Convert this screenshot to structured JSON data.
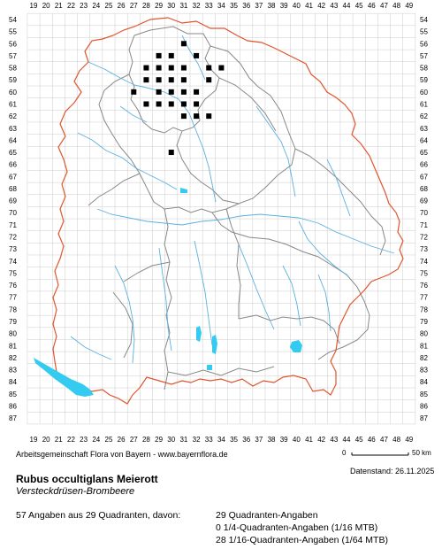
{
  "map": {
    "x_labels": [
      "19",
      "20",
      "21",
      "22",
      "23",
      "24",
      "25",
      "26",
      "27",
      "28",
      "29",
      "30",
      "31",
      "32",
      "33",
      "34",
      "35",
      "36",
      "37",
      "38",
      "39",
      "40",
      "41",
      "42",
      "43",
      "44",
      "45",
      "46",
      "47",
      "48",
      "49"
    ],
    "y_labels": [
      "54",
      "55",
      "56",
      "57",
      "58",
      "59",
      "60",
      "61",
      "62",
      "63",
      "64",
      "65",
      "66",
      "67",
      "68",
      "69",
      "70",
      "71",
      "72",
      "73",
      "74",
      "75",
      "76",
      "77",
      "78",
      "79",
      "80",
      "81",
      "82",
      "83",
      "84",
      "85",
      "86",
      "87"
    ],
    "occurrence_cells": [
      [
        31,
        56
      ],
      [
        29,
        57
      ],
      [
        30,
        57
      ],
      [
        32,
        57
      ],
      [
        28,
        58
      ],
      [
        29,
        58
      ],
      [
        30,
        58
      ],
      [
        31,
        58
      ],
      [
        33,
        58
      ],
      [
        34,
        58
      ],
      [
        28,
        59
      ],
      [
        29,
        59
      ],
      [
        30,
        59
      ],
      [
        31,
        59
      ],
      [
        33,
        59
      ],
      [
        29,
        60
      ],
      [
        30,
        60
      ],
      [
        31,
        60
      ],
      [
        32,
        60
      ],
      [
        28,
        61
      ],
      [
        29,
        61
      ],
      [
        30,
        61
      ],
      [
        31,
        61
      ],
      [
        32,
        61
      ],
      [
        31,
        62
      ],
      [
        32,
        62
      ],
      [
        33,
        62
      ],
      [
        30,
        65
      ],
      [
        27,
        60
      ]
    ],
    "colors": {
      "state_border": "#e0552e",
      "district_border": "#888888",
      "grid": "#cccccc",
      "rivers": "#5ab0e0",
      "lakes": "#33ccf0",
      "occurrence_marker": "#000000"
    },
    "legend_scale": {
      "start": "0",
      "end": "50 km"
    }
  },
  "credit": "Arbeitsgemeinschaft Flora von Bayern - www.bayernflora.de",
  "date": "Datenstand: 26.11.2025",
  "species": {
    "name": "Rubus occultiglans Meierott",
    "common_name": "Versteckdrüsen-Brombeere"
  },
  "stats": {
    "summary": "57 Angaben aus 29 Quadranten, davon:",
    "lines": [
      "29 Quadranten-Angaben",
      "0 1/4-Quadranten-Angaben (1/16 MTB)",
      "28 1/16-Quadranten-Angaben (1/64 MTB)"
    ]
  }
}
